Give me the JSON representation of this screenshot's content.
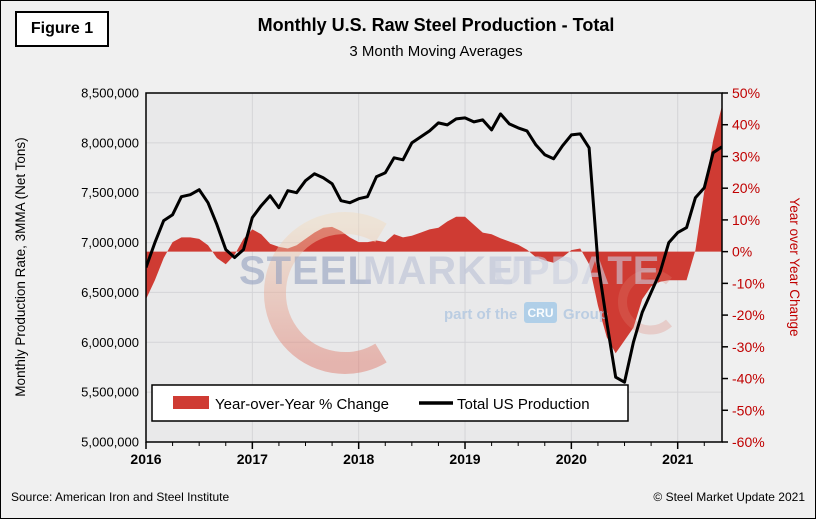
{
  "figure_label": "Figure 1",
  "title": "Monthly U.S. Raw Steel Production - Total",
  "subtitle": "3 Month Moving Averages",
  "source": "Source: American Iron and Steel Institute",
  "copyright": "© Steel Market Update 2021",
  "watermark": {
    "word1": "STEEL",
    "word2": "MARKET",
    "word3": "UPDATE",
    "tagline_prefix": "part of the",
    "tagline_box": "CRU",
    "tagline_suffix": "Group"
  },
  "colors": {
    "red_area": "#CF3B33",
    "axis_red": "#C00000",
    "line_black": "#000000",
    "plot_bg": "#E9E9EA",
    "grid": "#D4D4D7",
    "page_bg": "#F0F0F0"
  },
  "legend": {
    "area_label": "Year-over-Year % Change",
    "line_label": "Total US Production"
  },
  "chart_data": {
    "type": "area+line combo (area on right % axis, line on left tons axis)",
    "frequency": "monthly",
    "x_start": "2016-01",
    "x_end": "2021-06",
    "x_year_labels": [
      "2016",
      "2017",
      "2018",
      "2019",
      "2020",
      "2021"
    ],
    "left_axis": {
      "label": "Monthly Production Rate, 3MMA (Net Tons)",
      "range": [
        5000000,
        8500000
      ],
      "tick_step": 500000,
      "ticks": [
        "8,500,000",
        "8,000,000",
        "7,500,000",
        "7,000,000",
        "6,500,000",
        "6,000,000",
        "5,500,000",
        "5,000,000"
      ]
    },
    "right_axis": {
      "label": "Year over Year Change",
      "range": [
        -60,
        50
      ],
      "tick_step": 10,
      "ticks": [
        "50%",
        "40%",
        "30%",
        "20%",
        "10%",
        "0%",
        "-10%",
        "-20%",
        "-30%",
        "-40%",
        "-50%",
        "-60%"
      ]
    },
    "grid": true,
    "legend_position": "bottom-left inside plot",
    "series": [
      {
        "name": "Year-over-Year % Change",
        "type": "area",
        "axis": "right",
        "unit": "percent",
        "values": [
          -15,
          -9,
          -2,
          3,
          4.5,
          4.5,
          4,
          2,
          -2,
          -4,
          -1,
          4,
          7,
          5.5,
          2.5,
          1.5,
          1,
          2,
          4,
          6,
          7.5,
          7.8,
          6.5,
          4.5,
          3,
          3,
          3.5,
          3,
          5.5,
          4.5,
          5,
          6,
          7,
          7.5,
          9.5,
          11,
          11,
          8.5,
          6,
          5.5,
          4.2,
          3.2,
          2.2,
          0.6,
          -1.8,
          -2.8,
          -3.5,
          -1.8,
          0.5,
          1,
          -4,
          -17,
          -27,
          -32,
          -28,
          -24,
          -15,
          -11,
          -9.5,
          -9,
          -9,
          -9,
          0.5,
          19,
          35,
          46
        ]
      },
      {
        "name": "Total US Production",
        "type": "line",
        "axis": "left",
        "unit": "net tons (3MMA)",
        "values": [
          6750000,
          7000000,
          7220000,
          7280000,
          7460000,
          7480000,
          7530000,
          7400000,
          7180000,
          6930000,
          6850000,
          6930000,
          7250000,
          7370000,
          7470000,
          7350000,
          7520000,
          7500000,
          7620000,
          7690000,
          7650000,
          7590000,
          7420000,
          7400000,
          7440000,
          7460000,
          7660000,
          7700000,
          7850000,
          7830000,
          8000000,
          8060000,
          8120000,
          8200000,
          8180000,
          8240000,
          8250000,
          8210000,
          8230000,
          8130000,
          8290000,
          8190000,
          8150000,
          8120000,
          7980000,
          7880000,
          7840000,
          7970000,
          8080000,
          8090000,
          7950000,
          6800000,
          6200000,
          5650000,
          5600000,
          6000000,
          6300000,
          6500000,
          6700000,
          7000000,
          7100000,
          7150000,
          7450000,
          7550000,
          7900000,
          7960000
        ]
      }
    ]
  }
}
